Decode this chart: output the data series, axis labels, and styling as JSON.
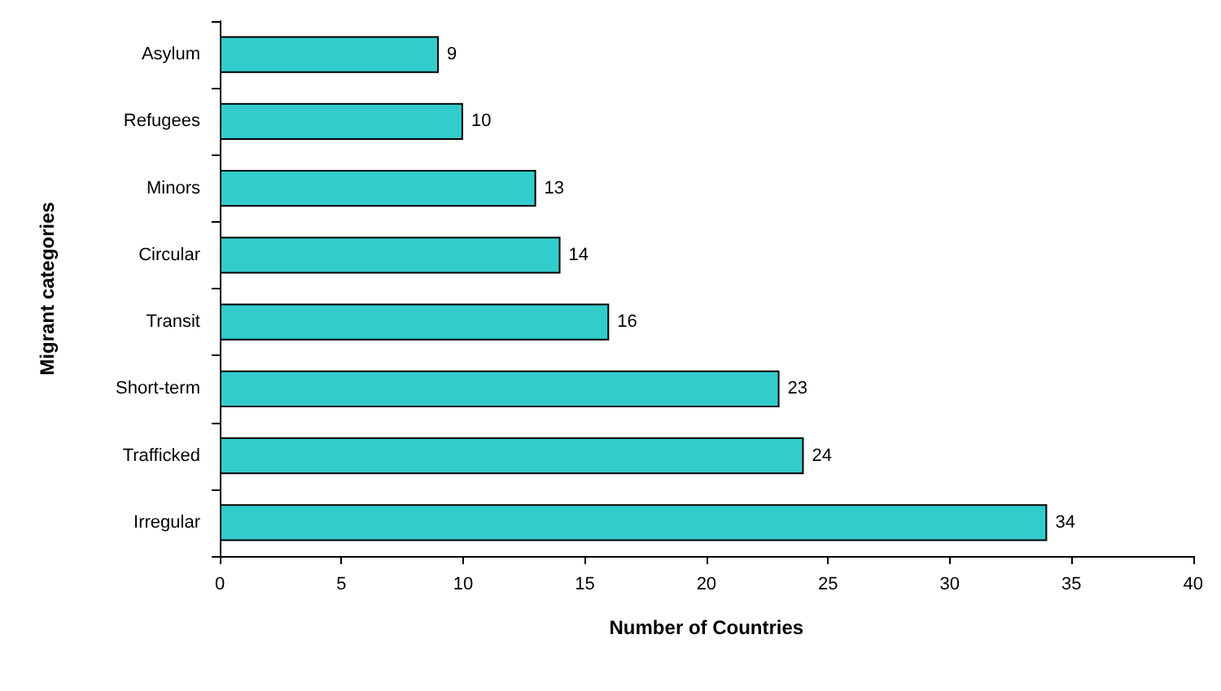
{
  "chart_data": {
    "type": "bar",
    "orientation": "horizontal",
    "xlabel": "Number of Countries",
    "ylabel": "Migrant categories",
    "categories": [
      "Asylum",
      "Refugees",
      "Minors",
      "Circular",
      "Transit",
      "Short-term",
      "Trafficked",
      "Irregular"
    ],
    "values": [
      9,
      10,
      13,
      14,
      16,
      23,
      24,
      34
    ],
    "color": "#33cccc",
    "xlim": [
      0,
      40
    ],
    "xticks": [
      0,
      5,
      10,
      15,
      20,
      25,
      30,
      35,
      40
    ],
    "data_labels": true
  }
}
